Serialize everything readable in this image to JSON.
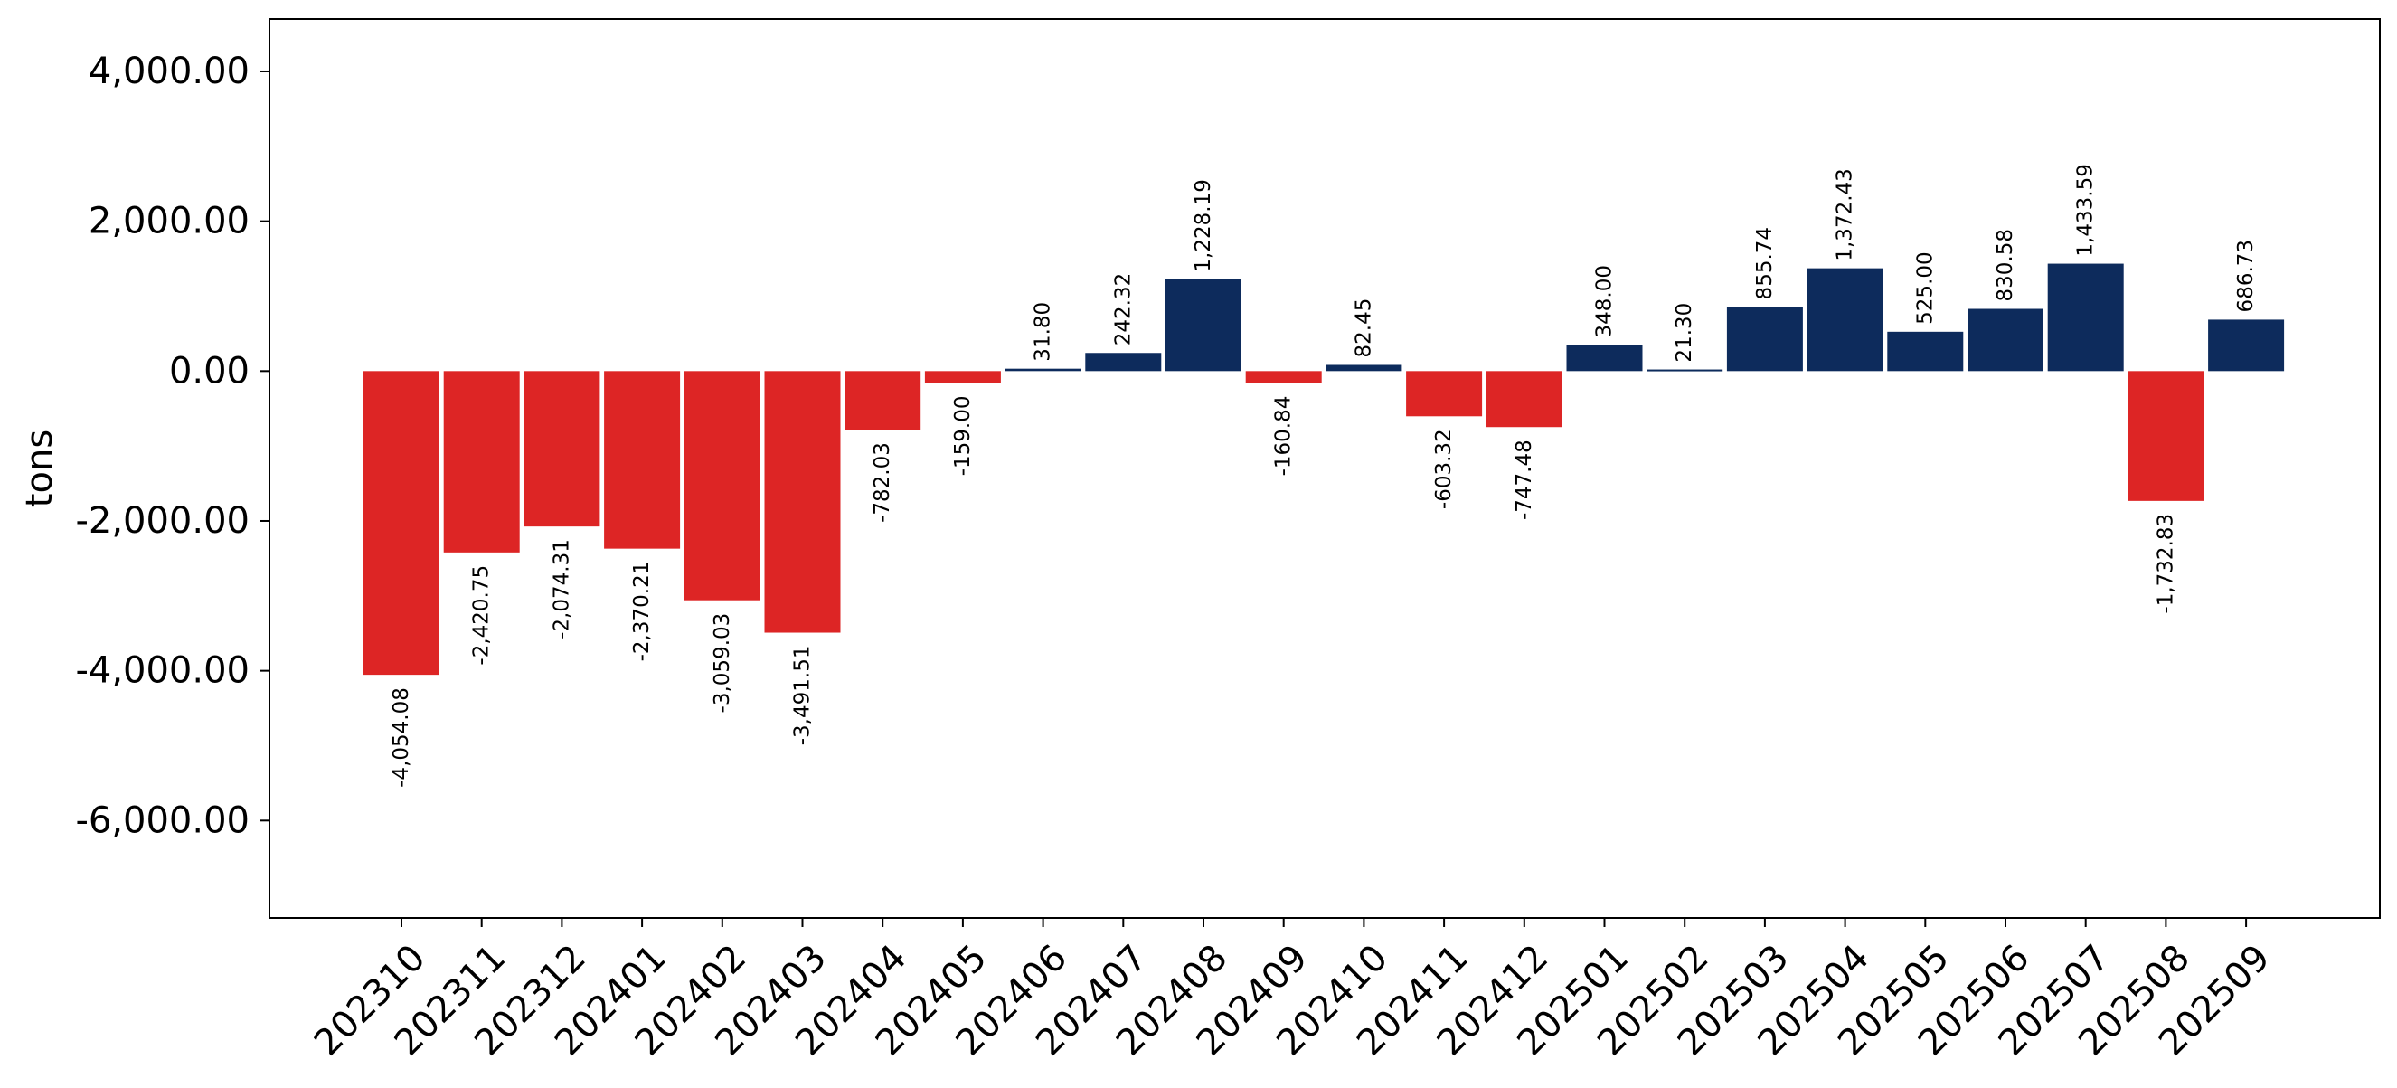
{
  "chart_data": {
    "type": "bar",
    "title": "",
    "xlabel": "",
    "ylabel": "tons",
    "ylim": [
      -7300,
      4700
    ],
    "yticks": [
      4000,
      2000,
      0,
      -2000,
      -4000,
      -6000
    ],
    "ytick_labels": [
      "4,000.00",
      "2,000.00",
      "0.00",
      "-2,000.00",
      "-4,000.00",
      "-6,000.00"
    ],
    "grid": false,
    "legend": "none",
    "colors": {
      "positive": "#0d2b5c",
      "negative": "#dd2525"
    },
    "categories": [
      "202310",
      "202311",
      "202312",
      "202401",
      "202402",
      "202403",
      "202404",
      "202405",
      "202406",
      "202407",
      "202408",
      "202409",
      "202410",
      "202411",
      "202412",
      "202501",
      "202502",
      "202503",
      "202504",
      "202505",
      "202506",
      "202507",
      "202508",
      "202509"
    ],
    "values": [
      -4054.08,
      -2420.75,
      -2074.31,
      -2370.21,
      -3059.03,
      -3491.51,
      -782.03,
      -159.0,
      31.8,
      242.32,
      1228.19,
      -160.84,
      82.45,
      -603.32,
      -747.48,
      348.0,
      21.3,
      855.74,
      1372.43,
      525.0,
      830.58,
      1433.59,
      -1732.83,
      686.73
    ],
    "value_labels": [
      "-4,054.08",
      "-2,420.75",
      "-2,074.31",
      "-2,370.21",
      "-3,059.03",
      "-3,491.51",
      "-782.03",
      "-159.00",
      "31.80",
      "242.32",
      "1,228.19",
      "-160.84",
      "82.45",
      "-603.32",
      "-747.48",
      "348.00",
      "21.30",
      "855.74",
      "1,372.43",
      "525.00",
      "830.58",
      "1,433.59",
      "-1,732.83",
      "686.73"
    ]
  }
}
